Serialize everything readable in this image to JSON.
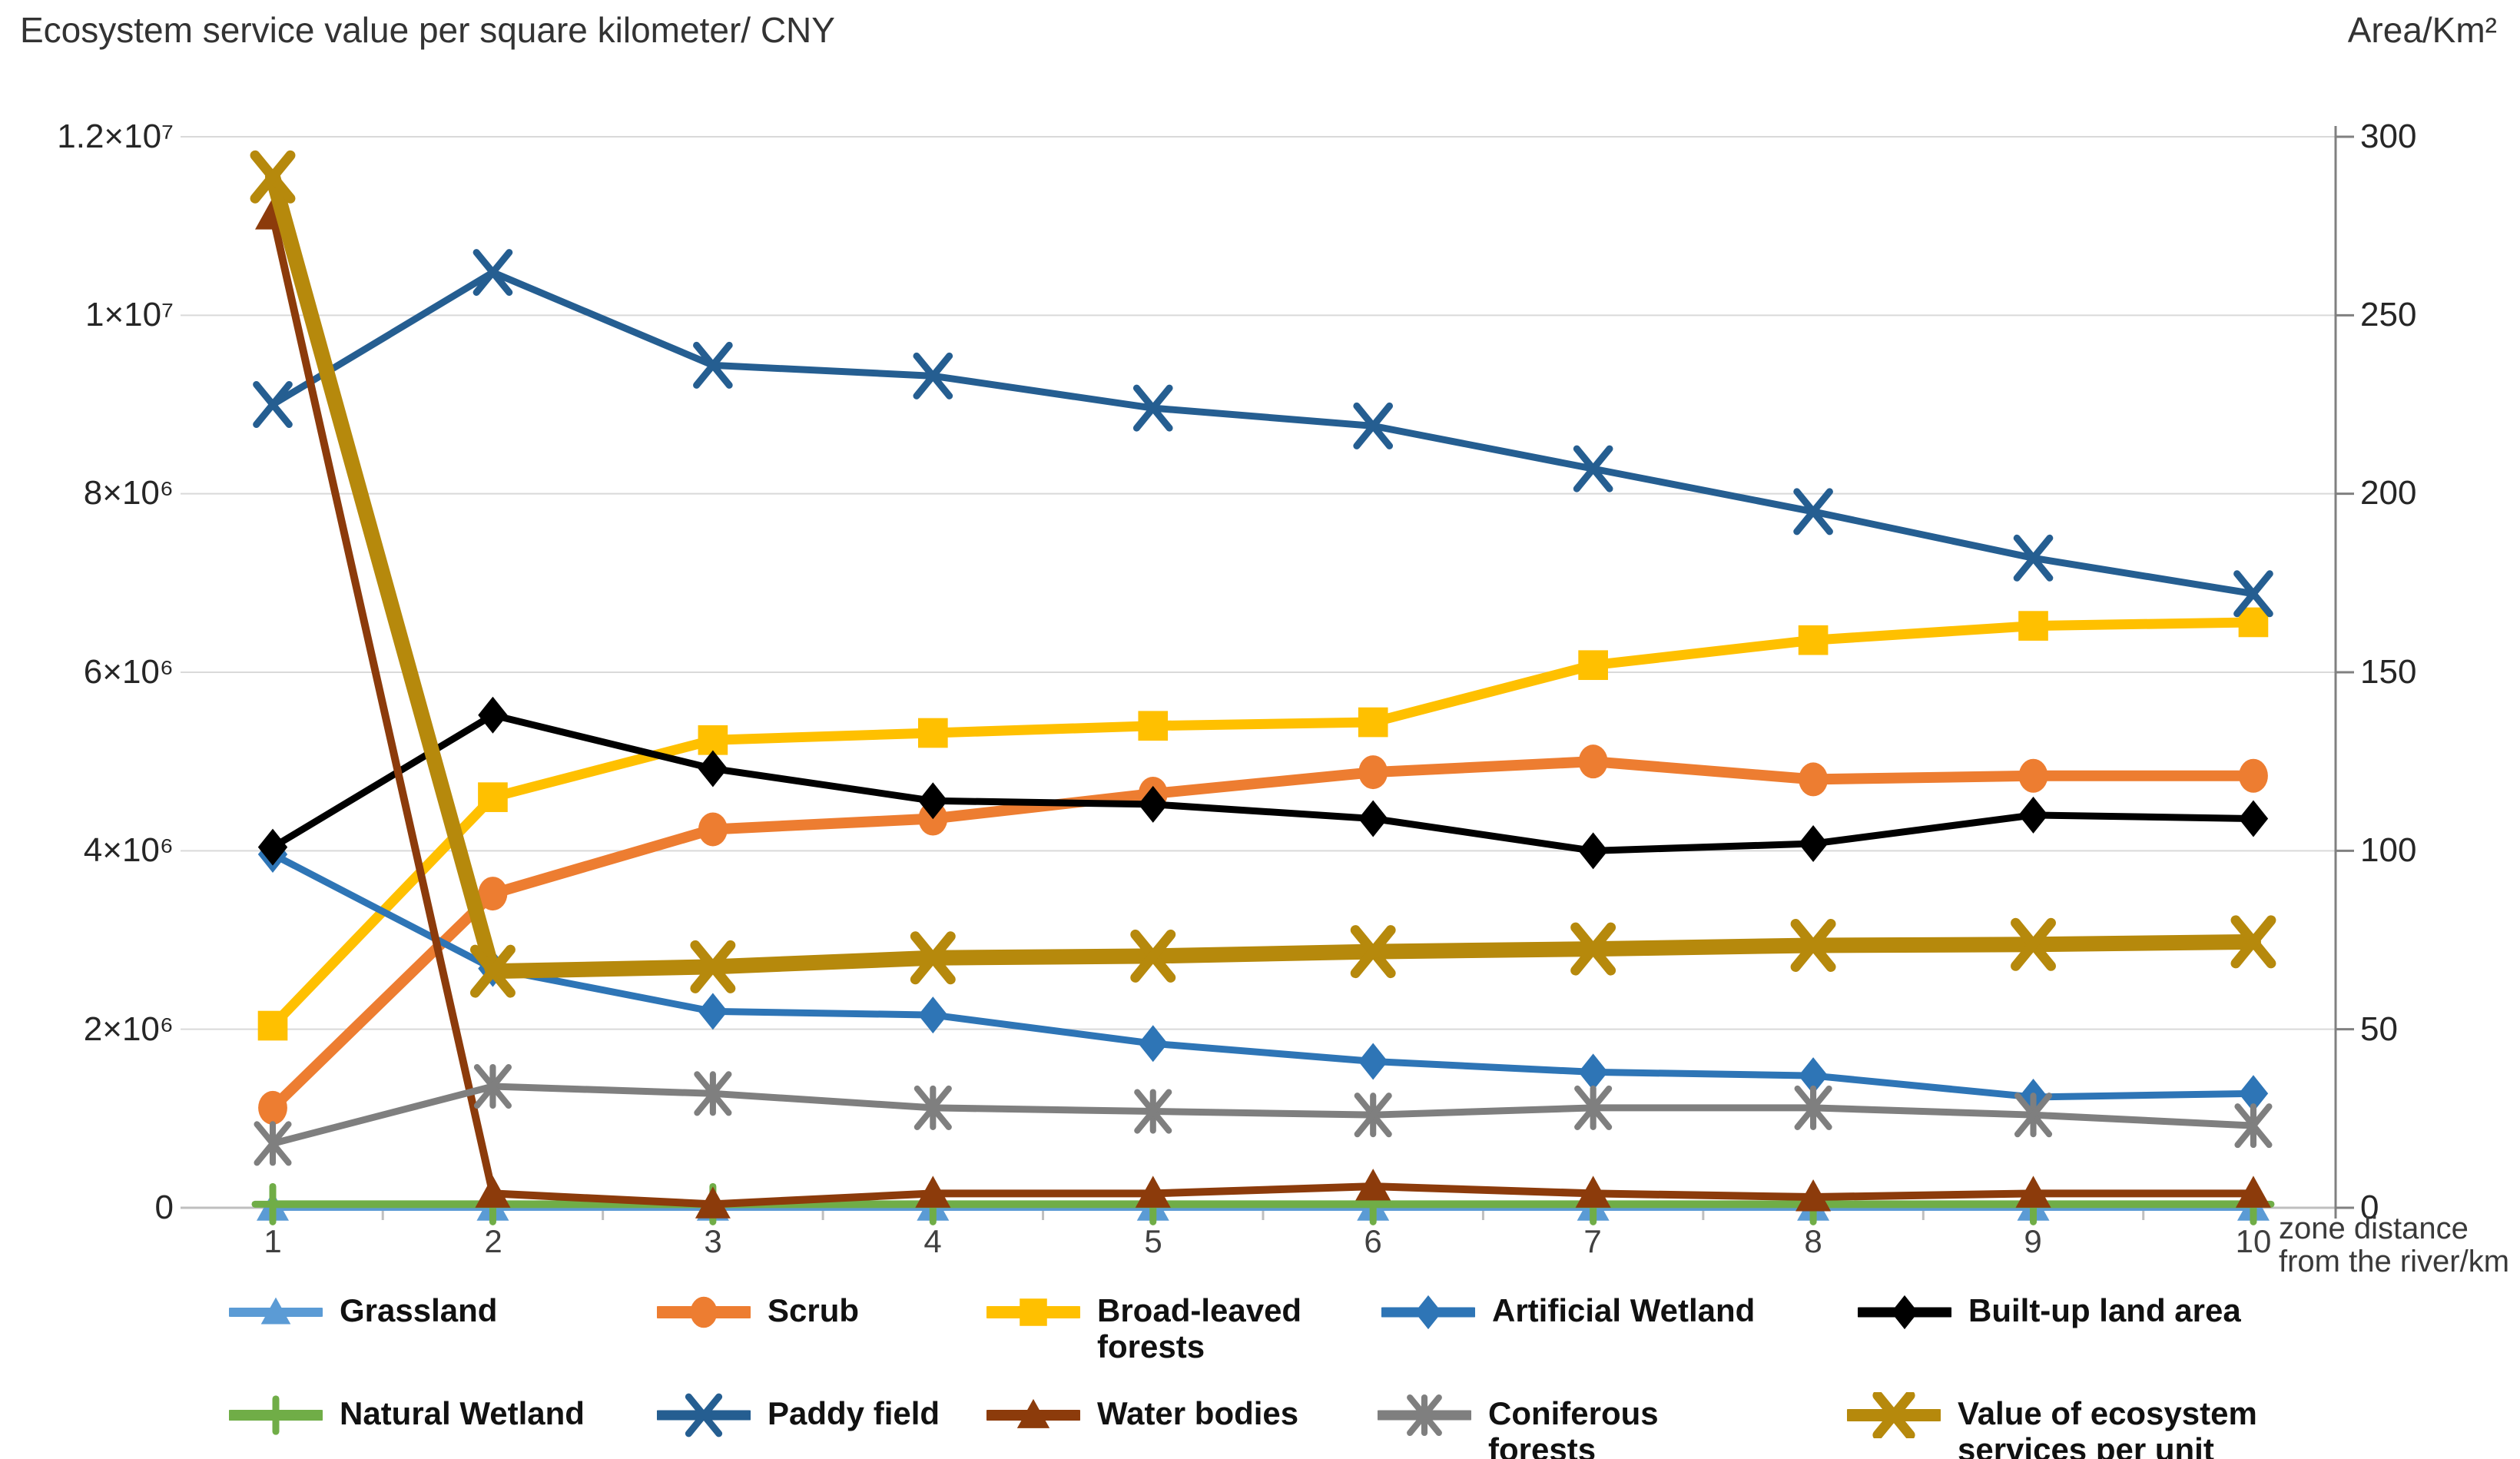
{
  "header": {
    "left_axis_title": "Ecosystem service value per square kilometer/ CNY",
    "right_axis_title": "Area/Km²"
  },
  "axes": {
    "left": {
      "ticks": [
        "1.2×10⁷",
        "1×10⁷",
        "8×10⁶",
        "6×10⁶",
        "4×10⁶",
        "2×10⁶",
        "0"
      ]
    },
    "right": {
      "ticks": [
        "300",
        "250",
        "200",
        "150",
        "100",
        "50",
        "0"
      ]
    },
    "x": {
      "ticks": [
        "1",
        "2",
        "3",
        "4",
        "5",
        "6",
        "7",
        "8",
        "9",
        "10"
      ],
      "label": "zone distance from the river/km"
    }
  },
  "chart_data": {
    "type": "line",
    "x": [
      1,
      2,
      3,
      4,
      5,
      6,
      7,
      8,
      9,
      10
    ],
    "x_axis_label": "zone distance from the river/km",
    "left_axis": {
      "title": "Ecosystem service value per square kilometer/ CNY",
      "range": [
        0,
        12000000
      ],
      "tick_step": 2000000,
      "unit": "CNY"
    },
    "right_axis": {
      "title": "Area/Km²",
      "range": [
        0,
        300
      ],
      "tick_step": 50,
      "unit": "km²"
    },
    "grid": true,
    "legend_position": "bottom",
    "colors": {
      "gridline": "#d9d9d9",
      "x_axis_line": "#bfbfbf",
      "right_axis_line": "#808080"
    },
    "series": [
      {
        "name": "Grassland",
        "axis": "right",
        "color": "#5B9BD5",
        "marker": "triangle",
        "values": [
          0,
          0,
          0,
          0,
          0,
          0,
          0,
          0,
          0,
          0
        ]
      },
      {
        "name": "Scrub",
        "axis": "right",
        "color": "#ED7D31",
        "marker": "circle",
        "values": [
          28,
          88,
          106,
          109,
          116,
          122,
          125,
          120,
          121,
          121
        ]
      },
      {
        "name": "Broad-leaved forests",
        "axis": "right",
        "color": "#FFC000",
        "marker": "square",
        "values": [
          51,
          115,
          131,
          133,
          135,
          136,
          152,
          159,
          163,
          164
        ]
      },
      {
        "name": "Artificial Wetland",
        "axis": "right",
        "color": "#2E75B6",
        "marker": "diamond",
        "values": [
          99,
          67,
          55,
          54,
          46,
          41,
          38,
          37,
          31,
          32
        ]
      },
      {
        "name": "Built-up land area",
        "axis": "right",
        "color": "#000000",
        "marker": "diamond",
        "values": [
          101,
          138,
          123,
          114,
          113,
          109,
          100,
          102,
          110,
          109
        ]
      },
      {
        "name": "Natural Wetland",
        "axis": "right",
        "color": "#70AD47",
        "marker": "plus",
        "values": [
          1,
          1,
          1,
          1,
          1,
          1,
          1,
          1,
          1,
          1
        ]
      },
      {
        "name": "Paddy field",
        "axis": "right",
        "color": "#255E91",
        "marker": "x",
        "values": [
          225,
          262,
          236,
          233,
          224,
          219,
          207,
          195,
          182,
          172
        ]
      },
      {
        "name": "Water bodies",
        "axis": "right",
        "color": "#8C3B0B",
        "marker": "triangle",
        "values": [
          278,
          4,
          1,
          4,
          4,
          6,
          4,
          3,
          4,
          4
        ]
      },
      {
        "name": "Coniferous forests",
        "axis": "right",
        "color": "#7F7F7F",
        "marker": "asterisk",
        "values": [
          18,
          34,
          32,
          28,
          27,
          26,
          28,
          28,
          26,
          23
        ]
      },
      {
        "name": "Value of ecosystem services per unit",
        "axis": "left",
        "color": "#B6890C",
        "marker": "x",
        "values": [
          11550000,
          2650000,
          2700000,
          2800000,
          2820000,
          2870000,
          2900000,
          2940000,
          2950000,
          2980000
        ]
      }
    ]
  }
}
